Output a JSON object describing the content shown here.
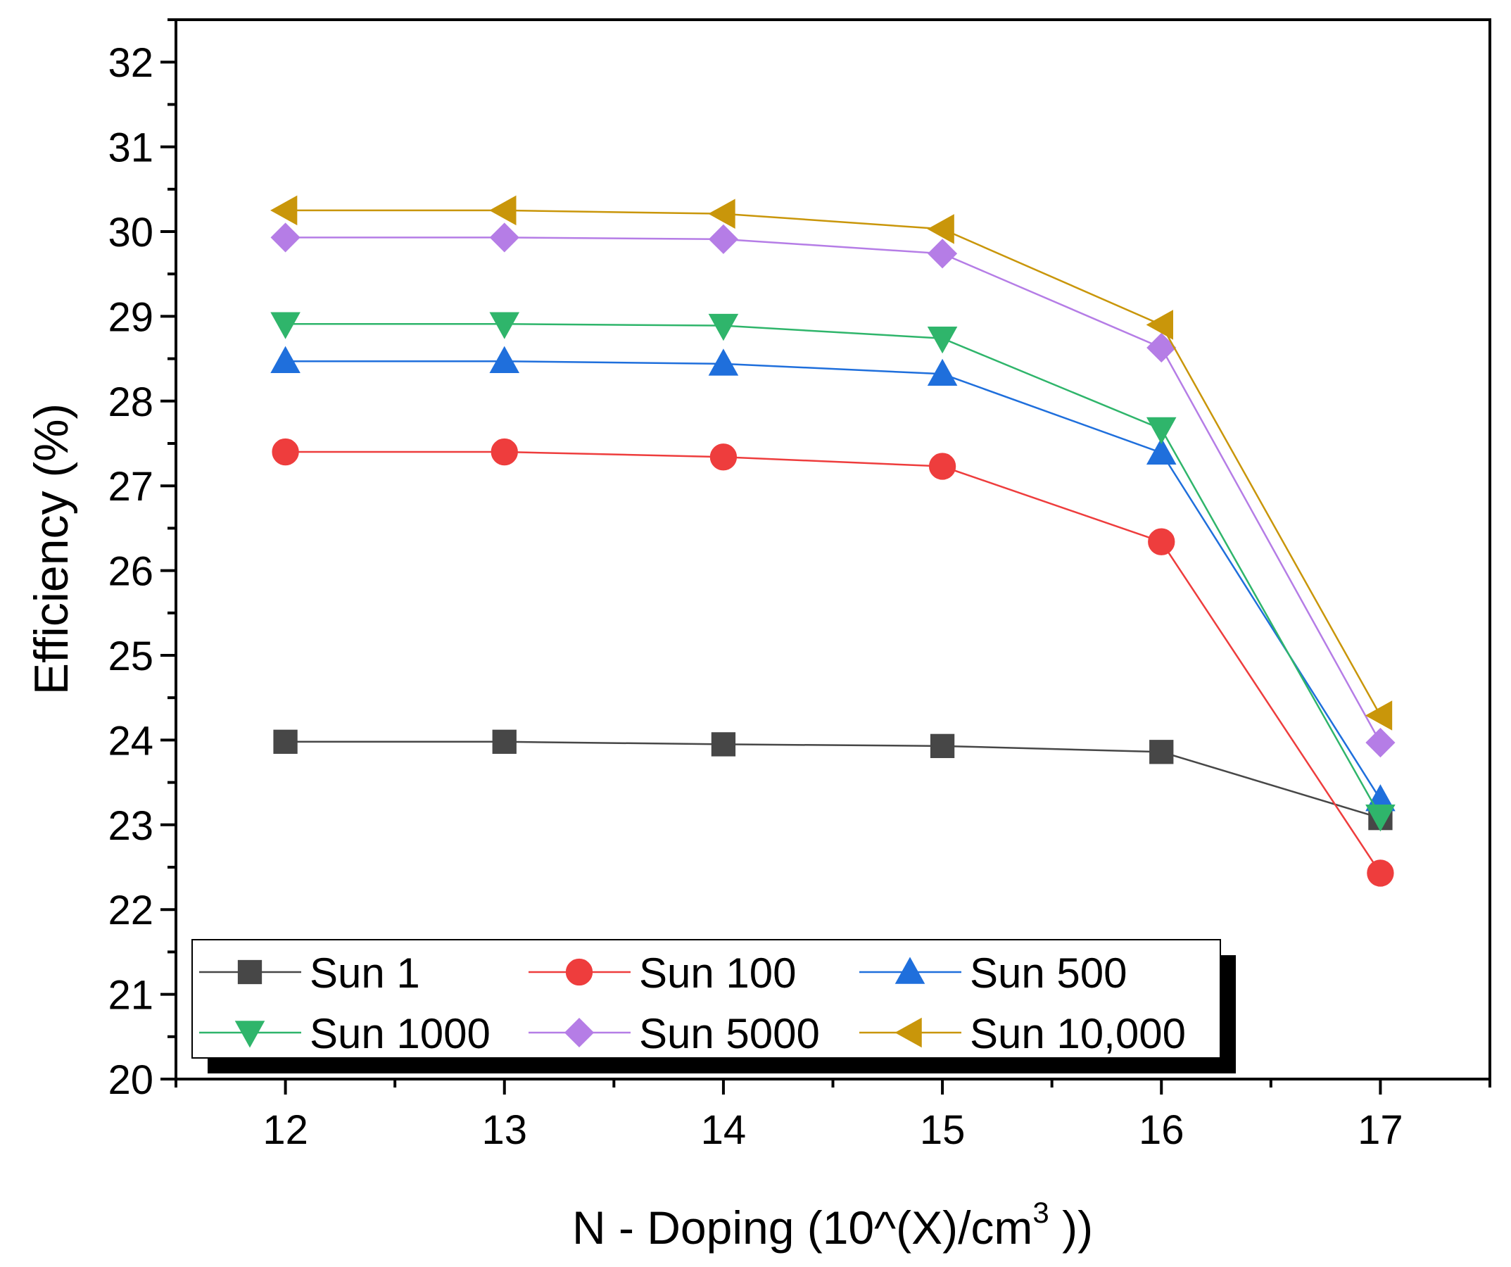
{
  "chart_data": {
    "type": "line",
    "title": "",
    "xlabel": {
      "main": "N - Doping (10^(X)/cm",
      "superscript": "3",
      "suffix": " ))"
    },
    "ylabel": "Efficiency (%)",
    "xlim": [
      11.5,
      17.5
    ],
    "ylim": [
      20,
      32.5
    ],
    "x_ticks": [
      12,
      13,
      14,
      15,
      16,
      17
    ],
    "y_ticks": [
      20,
      21,
      22,
      23,
      24,
      25,
      26,
      27,
      28,
      29,
      30,
      31,
      32
    ],
    "x": [
      12,
      13,
      14,
      15,
      16,
      17
    ],
    "grid": false,
    "legend_position": "bottom-left",
    "series": [
      {
        "name": "Sun 1",
        "color": "#474747",
        "marker": "square",
        "values": [
          23.98,
          23.98,
          23.95,
          23.93,
          23.86,
          23.08
        ]
      },
      {
        "name": "Sun 100",
        "color": "#ee3d3d",
        "marker": "circle",
        "values": [
          27.4,
          27.4,
          27.34,
          27.23,
          26.34,
          22.43
        ]
      },
      {
        "name": "Sun 500",
        "color": "#1f6fdc",
        "marker": "triangle-up",
        "values": [
          28.47,
          28.47,
          28.44,
          28.32,
          27.39,
          23.3
        ]
      },
      {
        "name": "Sun 1000",
        "color": "#2fb56b",
        "marker": "triangle-down",
        "values": [
          28.91,
          28.91,
          28.89,
          28.74,
          27.67,
          23.1
        ]
      },
      {
        "name": "Sun 5000",
        "color": "#b57de6",
        "marker": "diamond",
        "values": [
          29.93,
          29.93,
          29.91,
          29.74,
          28.63,
          23.97
        ]
      },
      {
        "name": "Sun 10,000",
        "color": "#c9960a",
        "marker": "triangle-left",
        "values": [
          30.25,
          30.25,
          30.21,
          30.03,
          28.9,
          24.29
        ]
      }
    ]
  }
}
